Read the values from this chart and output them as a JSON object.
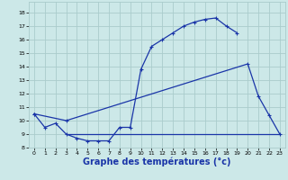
{
  "line1_x": [
    0,
    1,
    2,
    3,
    4,
    5,
    6,
    7,
    8,
    9,
    10,
    11,
    12,
    13,
    14,
    15,
    16,
    17,
    18,
    19
  ],
  "line1_y": [
    10.5,
    9.5,
    9.8,
    9.0,
    8.7,
    8.5,
    8.5,
    8.5,
    9.5,
    9.5,
    13.8,
    15.5,
    16.0,
    16.5,
    17.0,
    17.3,
    17.5,
    17.6,
    17.0,
    16.5
  ],
  "line2_x": [
    0,
    3,
    20,
    21,
    22,
    23
  ],
  "line2_y": [
    10.5,
    10.0,
    14.2,
    11.8,
    10.4,
    9.0
  ],
  "line3_x": [
    3,
    23
  ],
  "line3_y": [
    9.0,
    9.0
  ],
  "bg_color": "#cce8e8",
  "grid_color": "#aacccc",
  "line_color": "#1a35a8",
  "xlabel": "Graphe des températures (°c)",
  "xlabel_fontsize": 7,
  "xticks": [
    0,
    1,
    2,
    3,
    4,
    5,
    6,
    7,
    8,
    9,
    10,
    11,
    12,
    13,
    14,
    15,
    16,
    17,
    18,
    19,
    20,
    21,
    22,
    23
  ],
  "yticks": [
    8,
    9,
    10,
    11,
    12,
    13,
    14,
    15,
    16,
    17,
    18
  ],
  "xlim": [
    -0.5,
    23.5
  ],
  "ylim": [
    8,
    18.8
  ]
}
